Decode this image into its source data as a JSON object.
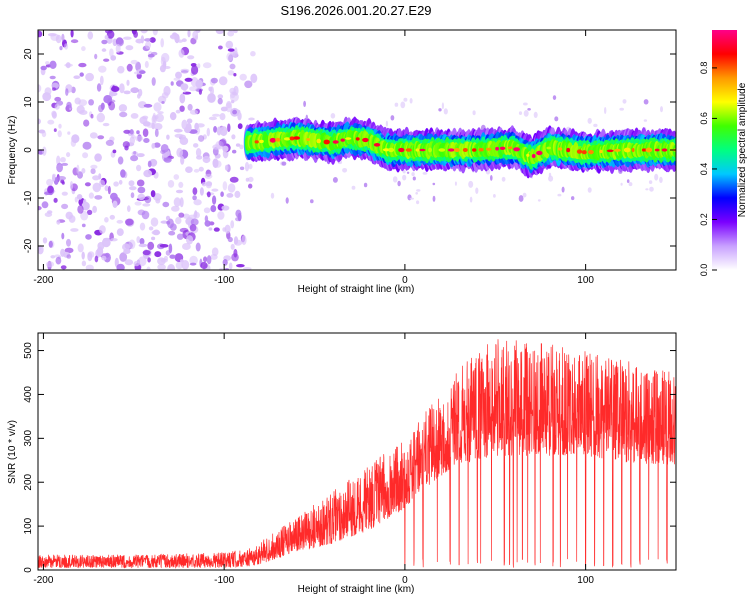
{
  "figure": {
    "title": "S196.2026.001.20.27.E29"
  },
  "chart_data": [
    {
      "type": "heatmap",
      "title": "S196.2026.001.20.27.E29",
      "xlabel": "Height of straight line (km)",
      "ylabel": "Frequency (Hz)",
      "xlim": [
        -203,
        150
      ],
      "ylim": [
        -25,
        25
      ],
      "x_ticks": [
        -200,
        -100,
        0,
        100
      ],
      "y_ticks": [
        -20,
        -10,
        0,
        10,
        20
      ],
      "regions": [
        {
          "name": "noise",
          "x_range": [
            -203,
            -80
          ],
          "y_range": [
            -25,
            25
          ],
          "amplitude_range": [
            0.0,
            0.3
          ]
        },
        {
          "name": "signal_band",
          "x_range": [
            -87,
            150
          ],
          "center_frequency": 0,
          "half_width_hz": 2,
          "amplitude_range": [
            0.3,
            0.95
          ]
        }
      ],
      "ridge": [
        {
          "x": -87,
          "y": 1.5
        },
        {
          "x": -60,
          "y": 2.5
        },
        {
          "x": -40,
          "y": 1.5
        },
        {
          "x": -30,
          "y": 2.5
        },
        {
          "x": -20,
          "y": 2.0
        },
        {
          "x": -10,
          "y": 0.0
        },
        {
          "x": 0,
          "y": 0.0
        },
        {
          "x": 20,
          "y": 0.0
        },
        {
          "x": 40,
          "y": 0.0
        },
        {
          "x": 60,
          "y": 0.5
        },
        {
          "x": 70,
          "y": -1.5
        },
        {
          "x": 80,
          "y": 0.5
        },
        {
          "x": 100,
          "y": -0.5
        },
        {
          "x": 120,
          "y": 0.0
        },
        {
          "x": 150,
          "y": 0.0
        }
      ],
      "colorbar": {
        "label": "Normalized spectral amplitude",
        "ticks": [
          "0.0",
          "0.2",
          "0.4",
          "0.6",
          "0.8"
        ],
        "range": [
          0.0,
          0.95
        ],
        "colors": [
          "#ffffff",
          "#c8a0ff",
          "#7a00ff",
          "#0000ff",
          "#00c8ff",
          "#00ff80",
          "#40ff00",
          "#ffff00",
          "#ff9900",
          "#ff0000",
          "#ff0088"
        ]
      }
    },
    {
      "type": "line",
      "xlabel": "Height of straight line (km)",
      "ylabel": "SNR (10 * v/v)",
      "xlim": [
        -203,
        150
      ],
      "ylim": [
        0,
        540
      ],
      "x_ticks": [
        -200,
        -100,
        0,
        100
      ],
      "y_ticks": [
        0,
        100,
        200,
        300,
        400,
        500
      ],
      "series": [
        {
          "name": "SNR",
          "color": "#ff2a2a",
          "envelope": [
            {
              "x": -203,
              "low": 5,
              "high": 35
            },
            {
              "x": -150,
              "low": 5,
              "high": 35
            },
            {
              "x": -100,
              "low": 5,
              "high": 40
            },
            {
              "x": -85,
              "low": 8,
              "high": 50
            },
            {
              "x": -75,
              "low": 20,
              "high": 80
            },
            {
              "x": -60,
              "low": 40,
              "high": 120
            },
            {
              "x": -40,
              "low": 60,
              "high": 180
            },
            {
              "x": -20,
              "low": 90,
              "high": 240
            },
            {
              "x": 0,
              "low": 140,
              "high": 300
            },
            {
              "x": 15,
              "low": 200,
              "high": 380
            },
            {
              "x": 30,
              "low": 240,
              "high": 460
            },
            {
              "x": 50,
              "low": 260,
              "high": 530
            },
            {
              "x": 75,
              "low": 260,
              "high": 520
            },
            {
              "x": 100,
              "low": 260,
              "high": 500
            },
            {
              "x": 130,
              "low": 240,
              "high": 470
            },
            {
              "x": 150,
              "low": 240,
              "high": 450
            }
          ],
          "dropouts_x": [
            0,
            5,
            10,
            18,
            25,
            30,
            35,
            40,
            42,
            48,
            55,
            58,
            60,
            62,
            65,
            68,
            72,
            75,
            78,
            82,
            86,
            90,
            95,
            100,
            105,
            110,
            115,
            120,
            125,
            130,
            135,
            140,
            145
          ]
        }
      ]
    }
  ]
}
